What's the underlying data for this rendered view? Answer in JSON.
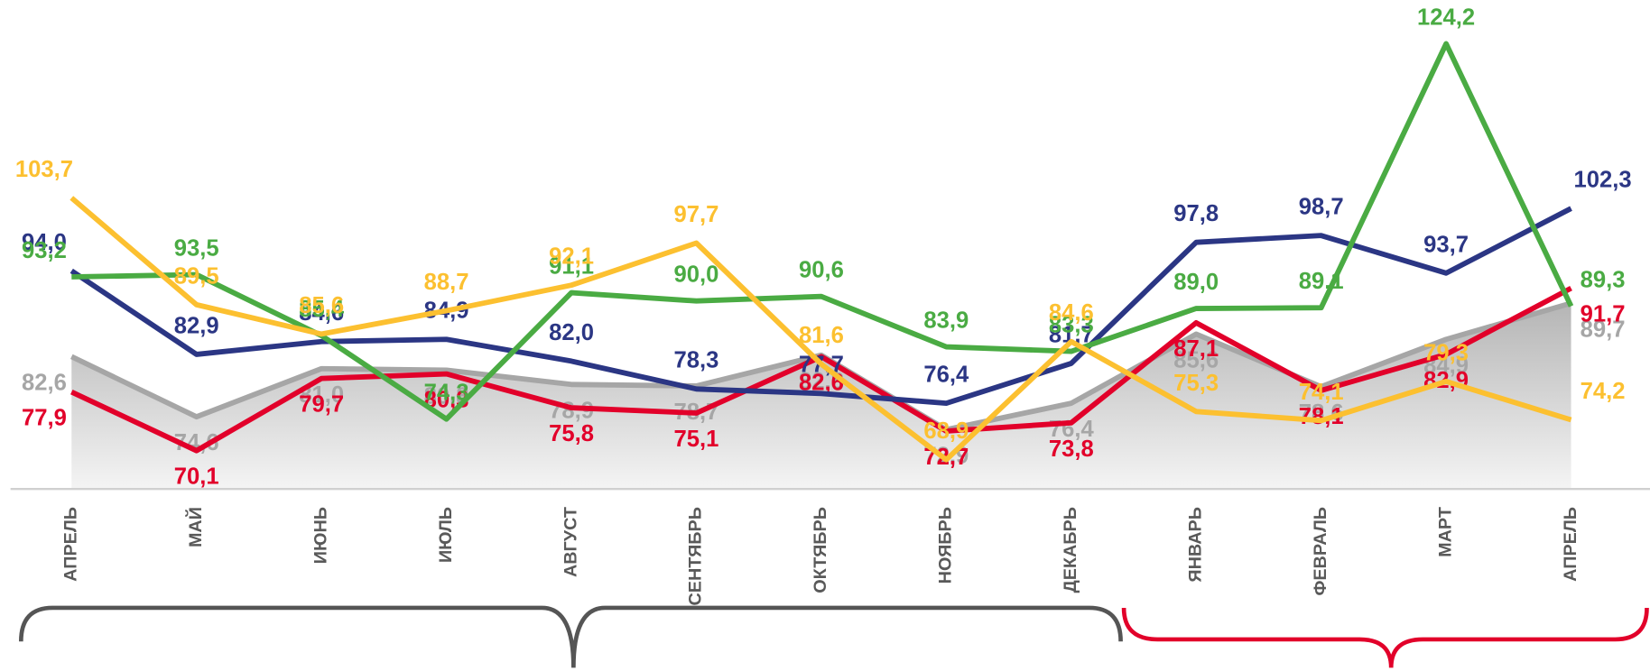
{
  "chart_data": {
    "type": "line",
    "categories": [
      "АПРЕЛЬ",
      "МАЙ",
      "ИЮНЬ",
      "ИЮЛЬ",
      "АВГУСТ",
      "СЕНТЯБРЬ",
      "ОКТЯБРЬ",
      "НОЯБРЬ",
      "ДЕКАБРЬ",
      "ЯНВАРЬ",
      "ФЕВРАЛЬ",
      "МАРТ",
      "АПРЕЛЬ"
    ],
    "ylim": [
      65,
      130
    ],
    "series": [
      {
        "color": "#a6a6a6",
        "area": true,
        "values": [
          82.6,
          74.6,
          81.0,
          80.8,
          78.9,
          78.7,
          82.8,
          72.9,
          76.4,
          85.6,
          78.6,
          84.9,
          89.7
        ],
        "value_labels": [
          "82,6",
          "74,6",
          "81,0",
          "80,8",
          "78,9",
          "78,7",
          "82,8",
          "72,9",
          "76,4",
          "85,6",
          "78,6",
          "84,9",
          "89,7"
        ]
      },
      {
        "color": "#e2002a",
        "values": [
          77.9,
          70.1,
          79.7,
          80.3,
          75.8,
          75.1,
          82.6,
          72.7,
          73.8,
          87.1,
          78.1,
          82.9,
          91.7
        ],
        "value_labels": [
          "77,9",
          "70,1",
          "79,7",
          "80,3",
          "75,8",
          "75,1",
          "82,6",
          "72,7",
          "73,8",
          "87,1",
          "78,1",
          "82,9",
          "91,7"
        ]
      },
      {
        "color": "#2b3684",
        "values": [
          94.0,
          82.9,
          84.6,
          84.9,
          82.0,
          78.3,
          77.7,
          76.4,
          81.7,
          97.8,
          98.7,
          93.7,
          102.3
        ],
        "value_labels": [
          "94,0",
          "82,9",
          "84,6",
          "84,9",
          "82,0",
          "78,3",
          "77,7",
          "76,4",
          "81,7",
          "97,8",
          "98,7",
          "93,7",
          "102,3"
        ]
      },
      {
        "color": "#4aab43",
        "values": [
          93.2,
          93.5,
          85.4,
          74.3,
          91.1,
          90.0,
          90.6,
          83.9,
          83.3,
          89.0,
          89.1,
          124.2,
          89.3
        ],
        "value_labels": [
          "93,2",
          "93,5",
          "85,4",
          "74,3",
          "91,1",
          "90,0",
          "90,6",
          "83,9",
          "83,3",
          "89,0",
          "89,1",
          "124,2",
          "89,3"
        ]
      },
      {
        "color": "#fcc030",
        "values": [
          103.7,
          89.5,
          85.6,
          88.7,
          92.1,
          97.7,
          81.6,
          68.9,
          84.6,
          75.3,
          74.1,
          79.3,
          74.2
        ],
        "value_labels": [
          "103,7",
          "89,5",
          "85,6",
          "88,7",
          "92,1",
          "97,7",
          "81,6",
          "68,9",
          "84,6",
          "75,3",
          "74,1",
          "79,3",
          "74,2"
        ]
      }
    ]
  }
}
